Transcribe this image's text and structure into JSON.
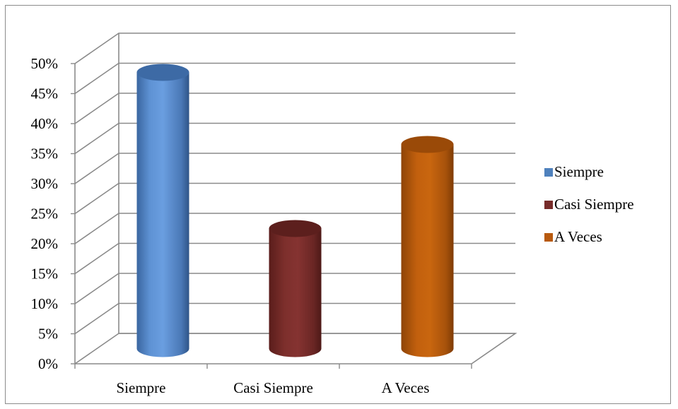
{
  "chart_data": {
    "type": "bar",
    "style": "3d-cylinder",
    "categories": [
      "Siempre",
      "Casi Siempre",
      "A Veces"
    ],
    "series": [
      {
        "name": "Siempre",
        "values": [
          46,
          null,
          null
        ],
        "color": "#4f81bd"
      },
      {
        "name": "Casi Siempre",
        "values": [
          null,
          20,
          null
        ],
        "color": "#772c2a"
      },
      {
        "name": "A Veces",
        "values": [
          null,
          null,
          34
        ],
        "color": "#b85a0f"
      }
    ],
    "values": [
      46,
      20,
      34
    ],
    "ylim": [
      0,
      50
    ],
    "y_unit": "%",
    "y_ticks": [
      "0%",
      "5%",
      "10%",
      "15%",
      "20%",
      "25%",
      "30%",
      "35%",
      "40%",
      "45%",
      "50%"
    ],
    "grid": true,
    "legend_position": "right",
    "title": "",
    "xlabel": "",
    "ylabel": ""
  },
  "legend": [
    {
      "label": "Siempre",
      "color": "#4f81bd"
    },
    {
      "label": "Casi Siempre",
      "color": "#772c2a"
    },
    {
      "label": "A Veces",
      "color": "#b85a0f"
    }
  ]
}
